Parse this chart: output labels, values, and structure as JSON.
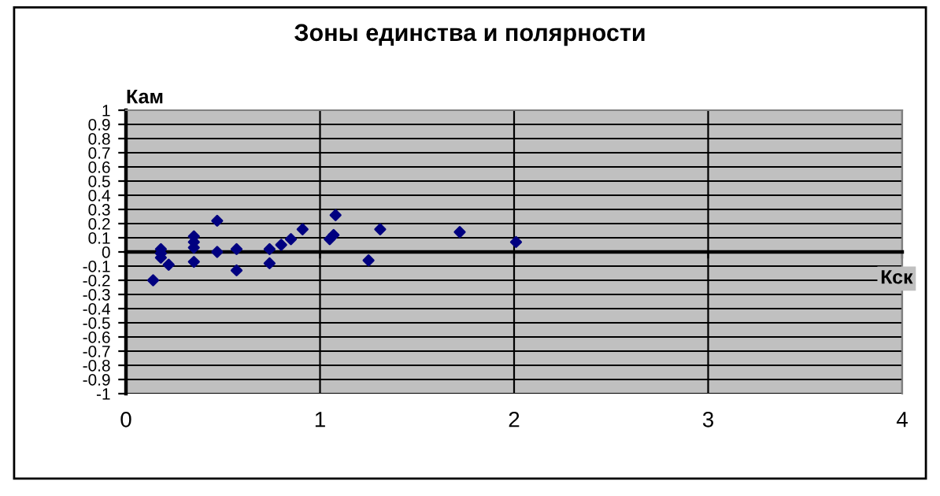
{
  "chart_data": {
    "type": "scatter",
    "title": "Зоны единства и полярности",
    "xlabel": "Кск",
    "ylabel": "Кам",
    "x": [
      0.14,
      0.18,
      0.18,
      0.18,
      0.22,
      0.35,
      0.35,
      0.35,
      0.35,
      0.47,
      0.47,
      0.57,
      0.57,
      0.74,
      0.74,
      0.8,
      0.85,
      0.91,
      1.05,
      1.07,
      1.08,
      1.25,
      1.31,
      1.72,
      2.01
    ],
    "series": [
      {
        "color": "#000080",
        "values": [
          -0.2,
          0.02,
          -0.01,
          -0.04,
          -0.09,
          0.11,
          0.07,
          0.03,
          -0.07,
          0.22,
          0.0,
          0.02,
          -0.13,
          0.02,
          -0.08,
          0.05,
          0.09,
          0.16,
          0.09,
          0.12,
          0.26,
          -0.06,
          0.16,
          0.14,
          0.07
        ]
      }
    ],
    "marker": "diamond",
    "grid": true,
    "xlim": [
      0,
      4
    ],
    "xticks": [
      0,
      1,
      2,
      3,
      4
    ],
    "ylim": [
      -1,
      1
    ],
    "yticks": [
      -1,
      -0.9,
      -0.8,
      -0.7,
      -0.6,
      -0.5,
      -0.4,
      -0.3,
      -0.2,
      -0.1,
      0,
      0.1,
      0.2,
      0.3,
      0.4,
      0.5,
      0.6,
      0.7,
      0.8,
      0.9,
      1
    ]
  }
}
